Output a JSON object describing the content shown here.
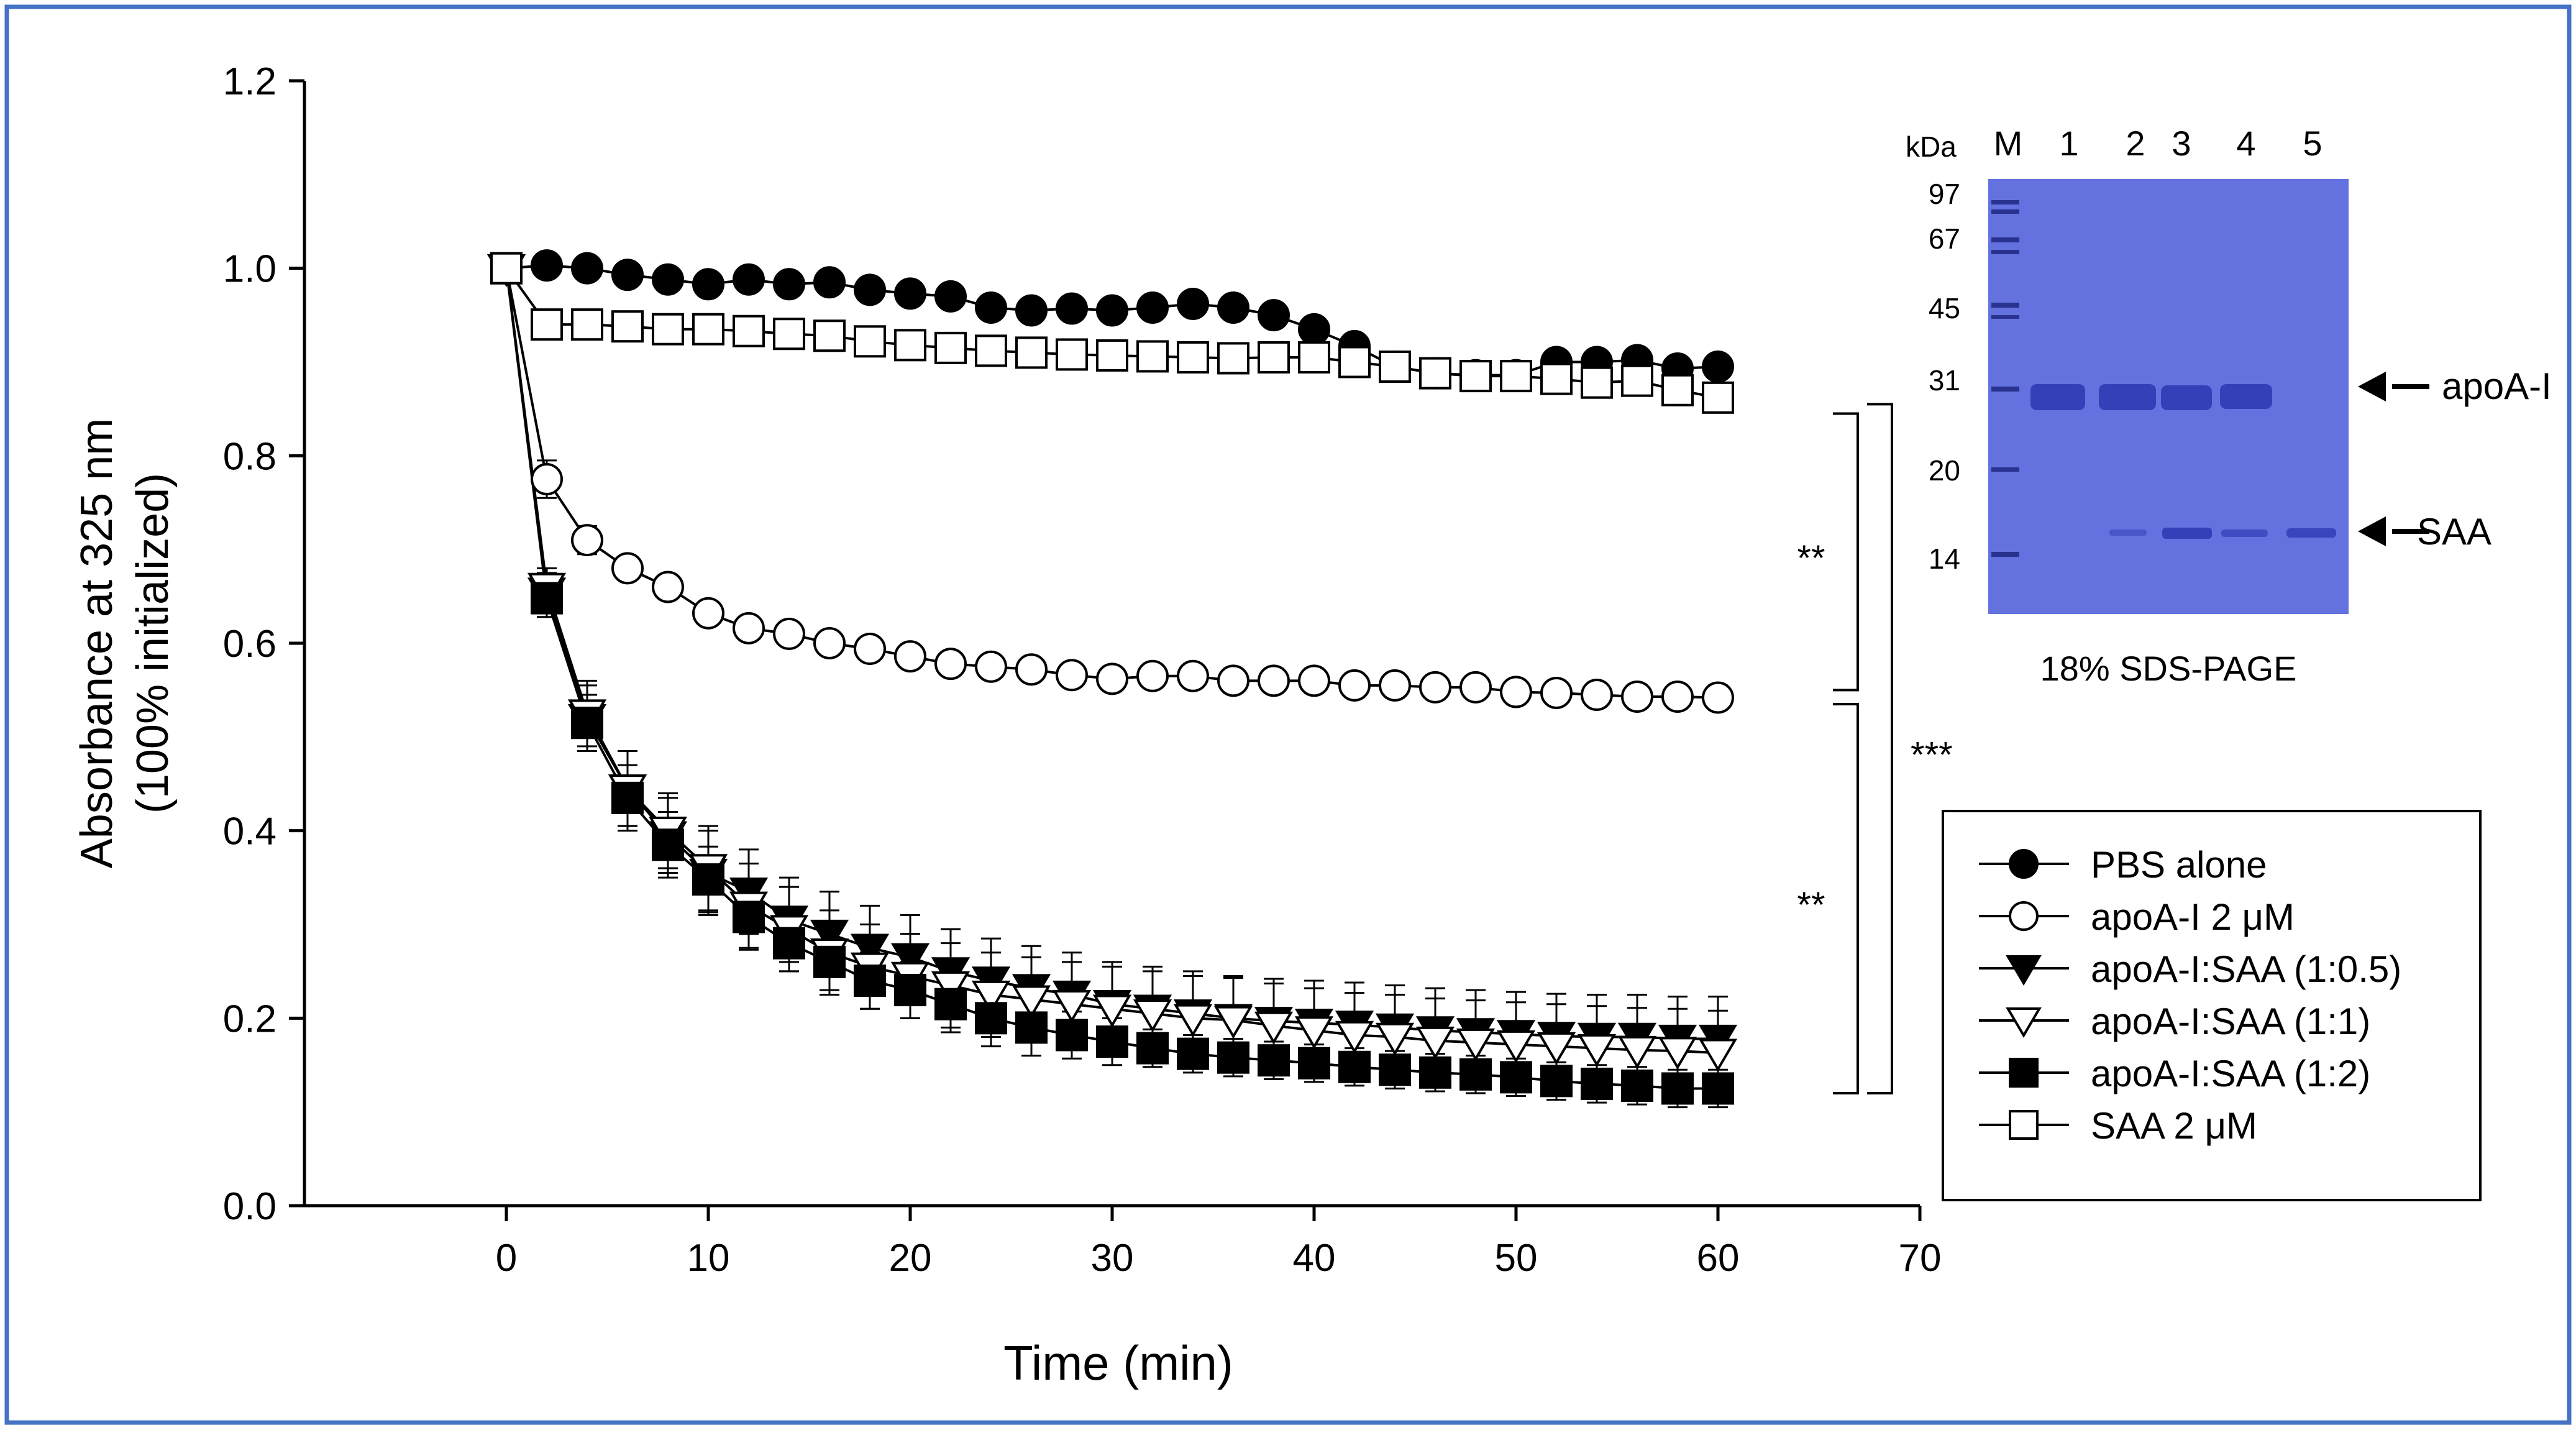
{
  "chart_data": {
    "type": "line",
    "xlabel": "Time (min)",
    "ylabel_lines": [
      "Absorbance at 325 nm",
      "(100% initialized)"
    ],
    "xlim": [
      -10,
      70
    ],
    "ylim": [
      0,
      1.2
    ],
    "xticks": [
      0,
      10,
      20,
      30,
      40,
      50,
      60,
      70
    ],
    "yticks": [
      0.0,
      0.2,
      0.4,
      0.6,
      0.8,
      1.0,
      1.2
    ],
    "x": [
      0,
      2,
      4,
      6,
      8,
      10,
      12,
      14,
      16,
      18,
      20,
      22,
      24,
      26,
      28,
      30,
      32,
      34,
      36,
      38,
      40,
      42,
      44,
      46,
      48,
      50,
      52,
      54,
      56,
      58,
      60
    ],
    "series": [
      {
        "name": "PBS alone",
        "marker": "circle",
        "fill": "filled",
        "values": [
          1.0,
          1.003,
          1.0,
          0.993,
          0.988,
          0.983,
          0.988,
          0.983,
          0.985,
          0.977,
          0.973,
          0.97,
          0.958,
          0.955,
          0.957,
          0.955,
          0.958,
          0.962,
          0.958,
          0.95,
          0.935,
          0.917,
          0.895,
          0.888,
          0.886,
          0.886,
          0.9,
          0.9,
          0.902,
          0.893,
          0.895
        ],
        "err": [
          0.004,
          0.004,
          0.004,
          0.004,
          0.004,
          0.004,
          0.004,
          0.004,
          0.004,
          0.004,
          0.004,
          0.004,
          0.004,
          0.004,
          0.004,
          0.004,
          0.004,
          0.004,
          0.004,
          0.004,
          0.004,
          0.004,
          0.004,
          0.004,
          0.004,
          0.004,
          0.004,
          0.004,
          0.004,
          0.004,
          0.004
        ]
      },
      {
        "name": "apoA-I 2 μM",
        "marker": "circle",
        "fill": "open",
        "values": [
          1.0,
          0.775,
          0.71,
          0.68,
          0.66,
          0.632,
          0.616,
          0.61,
          0.6,
          0.594,
          0.586,
          0.578,
          0.575,
          0.572,
          0.566,
          0.562,
          0.565,
          0.565,
          0.56,
          0.56,
          0.56,
          0.555,
          0.555,
          0.553,
          0.553,
          0.548,
          0.547,
          0.545,
          0.543,
          0.543,
          0.542
        ],
        "err": [
          0.0,
          0.02,
          0.015,
          0.012,
          0.012,
          0.012,
          0.012,
          0.012,
          0.012,
          0.012,
          0.012,
          0.012,
          0.012,
          0.012,
          0.012,
          0.013,
          0.013,
          0.013,
          0.013,
          0.013,
          0.013,
          0.013,
          0.013,
          0.013,
          0.013,
          0.013,
          0.013,
          0.013,
          0.013,
          0.013,
          0.013
        ]
      },
      {
        "name": "apoA-I:SAA (1:0.5)",
        "marker": "triangle-down",
        "fill": "filled",
        "values": [
          1.0,
          0.655,
          0.52,
          0.445,
          0.395,
          0.355,
          0.335,
          0.305,
          0.29,
          0.275,
          0.265,
          0.25,
          0.24,
          0.232,
          0.225,
          0.215,
          0.21,
          0.205,
          0.2,
          0.197,
          0.195,
          0.193,
          0.19,
          0.187,
          0.185,
          0.183,
          0.181,
          0.18,
          0.18,
          0.178,
          0.178
        ],
        "err": [
          0.0,
          0.02,
          0.035,
          0.04,
          0.04,
          0.045,
          0.045,
          0.045,
          0.045,
          0.045,
          0.045,
          0.045,
          0.045,
          0.045,
          0.045,
          0.045,
          0.045,
          0.045,
          0.045,
          0.045,
          0.045,
          0.045,
          0.045,
          0.045,
          0.045,
          0.045,
          0.045,
          0.045,
          0.045,
          0.045,
          0.045
        ]
      },
      {
        "name": "apoA-I:SAA (1:1)",
        "marker": "triangle-down",
        "fill": "open",
        "values": [
          1.0,
          0.66,
          0.525,
          0.445,
          0.4,
          0.36,
          0.32,
          0.295,
          0.27,
          0.255,
          0.245,
          0.235,
          0.225,
          0.22,
          0.215,
          0.21,
          0.205,
          0.2,
          0.198,
          0.192,
          0.187,
          0.182,
          0.18,
          0.176,
          0.174,
          0.172,
          0.17,
          0.168,
          0.166,
          0.165,
          0.163
        ],
        "err": [
          0.0,
          0.02,
          0.035,
          0.04,
          0.04,
          0.045,
          0.045,
          0.045,
          0.045,
          0.045,
          0.045,
          0.045,
          0.045,
          0.045,
          0.045,
          0.045,
          0.045,
          0.045,
          0.045,
          0.045,
          0.045,
          0.045,
          0.045,
          0.045,
          0.045,
          0.045,
          0.045,
          0.045,
          0.045,
          0.045,
          0.045
        ]
      },
      {
        "name": "apoA-I:SAA (1:2)",
        "marker": "square",
        "fill": "filled",
        "values": [
          1.0,
          0.648,
          0.515,
          0.435,
          0.385,
          0.348,
          0.308,
          0.28,
          0.26,
          0.24,
          0.23,
          0.215,
          0.2,
          0.19,
          0.182,
          0.175,
          0.168,
          0.162,
          0.158,
          0.155,
          0.152,
          0.148,
          0.145,
          0.142,
          0.14,
          0.137,
          0.133,
          0.13,
          0.128,
          0.125,
          0.125
        ],
        "err": [
          0.0,
          0.02,
          0.03,
          0.035,
          0.035,
          0.035,
          0.035,
          0.03,
          0.03,
          0.03,
          0.03,
          0.03,
          0.03,
          0.03,
          0.025,
          0.025,
          0.02,
          0.02,
          0.02,
          0.02,
          0.02,
          0.02,
          0.02,
          0.02,
          0.02,
          0.02,
          0.02,
          0.02,
          0.02,
          0.02,
          0.02
        ]
      },
      {
        "name": "SAA 2 μM",
        "marker": "square",
        "fill": "open",
        "values": [
          1.0,
          0.94,
          0.94,
          0.938,
          0.935,
          0.935,
          0.933,
          0.93,
          0.928,
          0.922,
          0.918,
          0.915,
          0.912,
          0.91,
          0.908,
          0.907,
          0.906,
          0.905,
          0.904,
          0.905,
          0.905,
          0.9,
          0.895,
          0.888,
          0.885,
          0.885,
          0.882,
          0.878,
          0.88,
          0.87,
          0.862
        ],
        "err": [
          0.004,
          0.004,
          0.004,
          0.004,
          0.004,
          0.004,
          0.004,
          0.004,
          0.004,
          0.004,
          0.004,
          0.004,
          0.004,
          0.004,
          0.004,
          0.004,
          0.004,
          0.004,
          0.004,
          0.004,
          0.004,
          0.004,
          0.004,
          0.004,
          0.004,
          0.004,
          0.004,
          0.004,
          0.004,
          0.004,
          0.004
        ]
      }
    ],
    "significance": [
      {
        "label": "**",
        "y_range": [
          0.55,
          0.845
        ]
      },
      {
        "label": "**",
        "y_range": [
          0.12,
          0.535
        ]
      },
      {
        "label": "***",
        "y_range": [
          0.12,
          0.855
        ]
      }
    ],
    "legend_position": "bottom-right"
  },
  "gel_inset": {
    "unit_label": "kDa",
    "lane_labels": [
      "M",
      "1",
      "2",
      "3",
      "4",
      "5"
    ],
    "marker_kda": [
      "97",
      "67",
      "45",
      "31",
      "20",
      "14"
    ],
    "caption": "18% SDS-PAGE",
    "band_labels": [
      "apoA-I",
      "SAA"
    ],
    "gel_color": "#5a68d8",
    "band_color": "#3440b8"
  },
  "colors": {
    "frame_border": "#4472c4",
    "ink": "#000000"
  }
}
